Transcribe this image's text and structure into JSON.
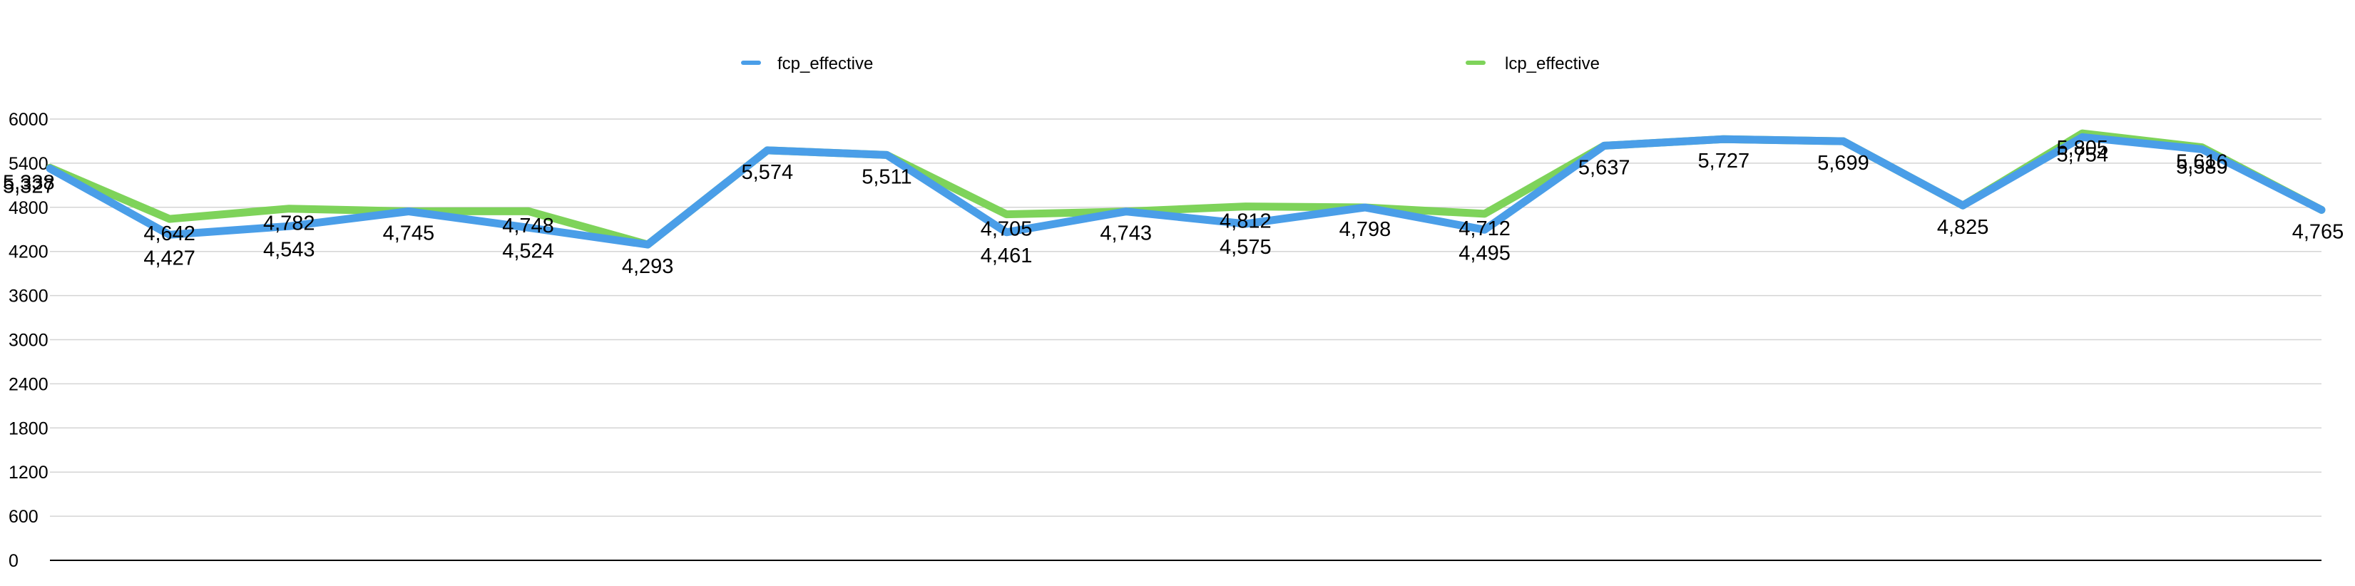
{
  "chart_data": {
    "type": "line",
    "title": "",
    "xlabel": "",
    "ylabel": "",
    "ylim": [
      0,
      6000
    ],
    "yticks": [
      "0",
      "600",
      "1200",
      "1800",
      "2400",
      "3000",
      "3600",
      "4200",
      "4800",
      "5400",
      "6000"
    ],
    "grid": true,
    "legend_position": "top",
    "x": [
      1,
      2,
      3,
      4,
      5,
      6,
      7,
      8,
      9,
      10,
      11,
      12,
      13,
      14,
      15,
      16,
      17,
      18,
      19,
      20
    ],
    "series": [
      {
        "name": "fcp_effective",
        "color": "#4a9ee8",
        "values": [
          5327,
          4427,
          4543,
          4745,
          4524,
          4293,
          5574,
          5511,
          4461,
          4743,
          4575,
          4798,
          4495,
          5637,
          5727,
          5699,
          4825,
          5754,
          5589,
          4765
        ],
        "labels": [
          "5,327",
          "4,427",
          "4,543",
          "4,745",
          "4,524",
          "4,293",
          "5,574",
          "5,511",
          "4,461",
          "4,743",
          "4,575",
          "4,798",
          "4,495",
          "5,637",
          "5,727",
          "5,699",
          "4,825",
          "5,754",
          "5,589",
          "4,765"
        ]
      },
      {
        "name": "lcp_effective",
        "color": "#7ed35a",
        "values": [
          5338,
          4642,
          4782,
          4745,
          4748,
          4293,
          5574,
          5511,
          4705,
          4743,
          4812,
          4798,
          4712,
          5637,
          5727,
          5699,
          4825,
          5805,
          5616,
          4765
        ],
        "labels": [
          "5,338",
          "4,642",
          "4,782",
          "4,745",
          "4,748",
          "4,293",
          "5,574",
          "5,511",
          "4,705",
          "4,743",
          "4,812",
          "4,798",
          "4,712",
          "5,637",
          "5,727",
          "5,699",
          "4,825",
          "5,805",
          "5,616",
          "4,765"
        ]
      }
    ]
  }
}
